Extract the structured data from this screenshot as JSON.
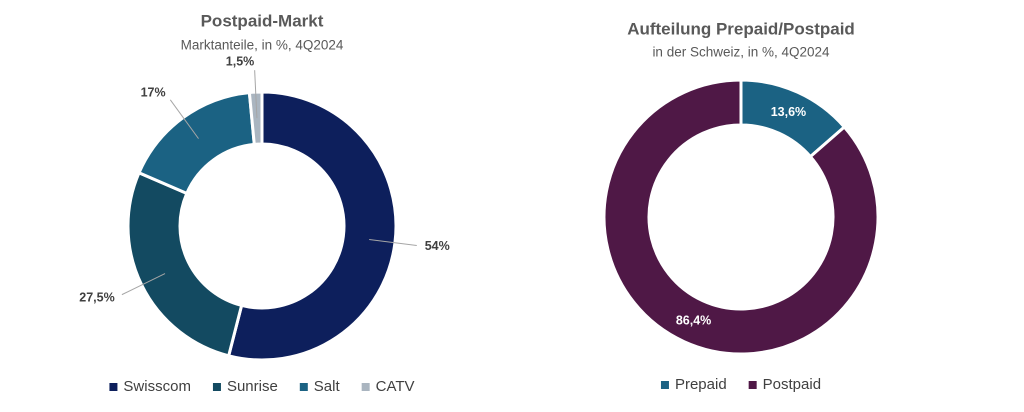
{
  "chart_data": [
    {
      "type": "donut",
      "title": "Postpaid-Markt",
      "subtitle": "Marktanteile, in %, 4Q2024",
      "categories": [
        "Swisscom",
        "Sunrise",
        "Salt",
        "CATV"
      ],
      "values": [
        54,
        27.5,
        17,
        1.5
      ],
      "value_labels": [
        "54%",
        "27,5%",
        "17%",
        "1,5%"
      ],
      "colors": [
        "#0d1f5c",
        "#134a61",
        "#1b6283",
        "#aab5c0"
      ],
      "label_position": "outside"
    },
    {
      "type": "donut",
      "title": "Aufteilung Prepaid/Postpaid",
      "subtitle": "in der Schweiz, in %, 4Q2024",
      "categories": [
        "Prepaid",
        "Postpaid"
      ],
      "values": [
        13.6,
        86.4
      ],
      "value_labels": [
        "13,6%",
        "86,4%"
      ],
      "colors": [
        "#1b6283",
        "#4f1846"
      ],
      "label_position": "inside"
    }
  ]
}
